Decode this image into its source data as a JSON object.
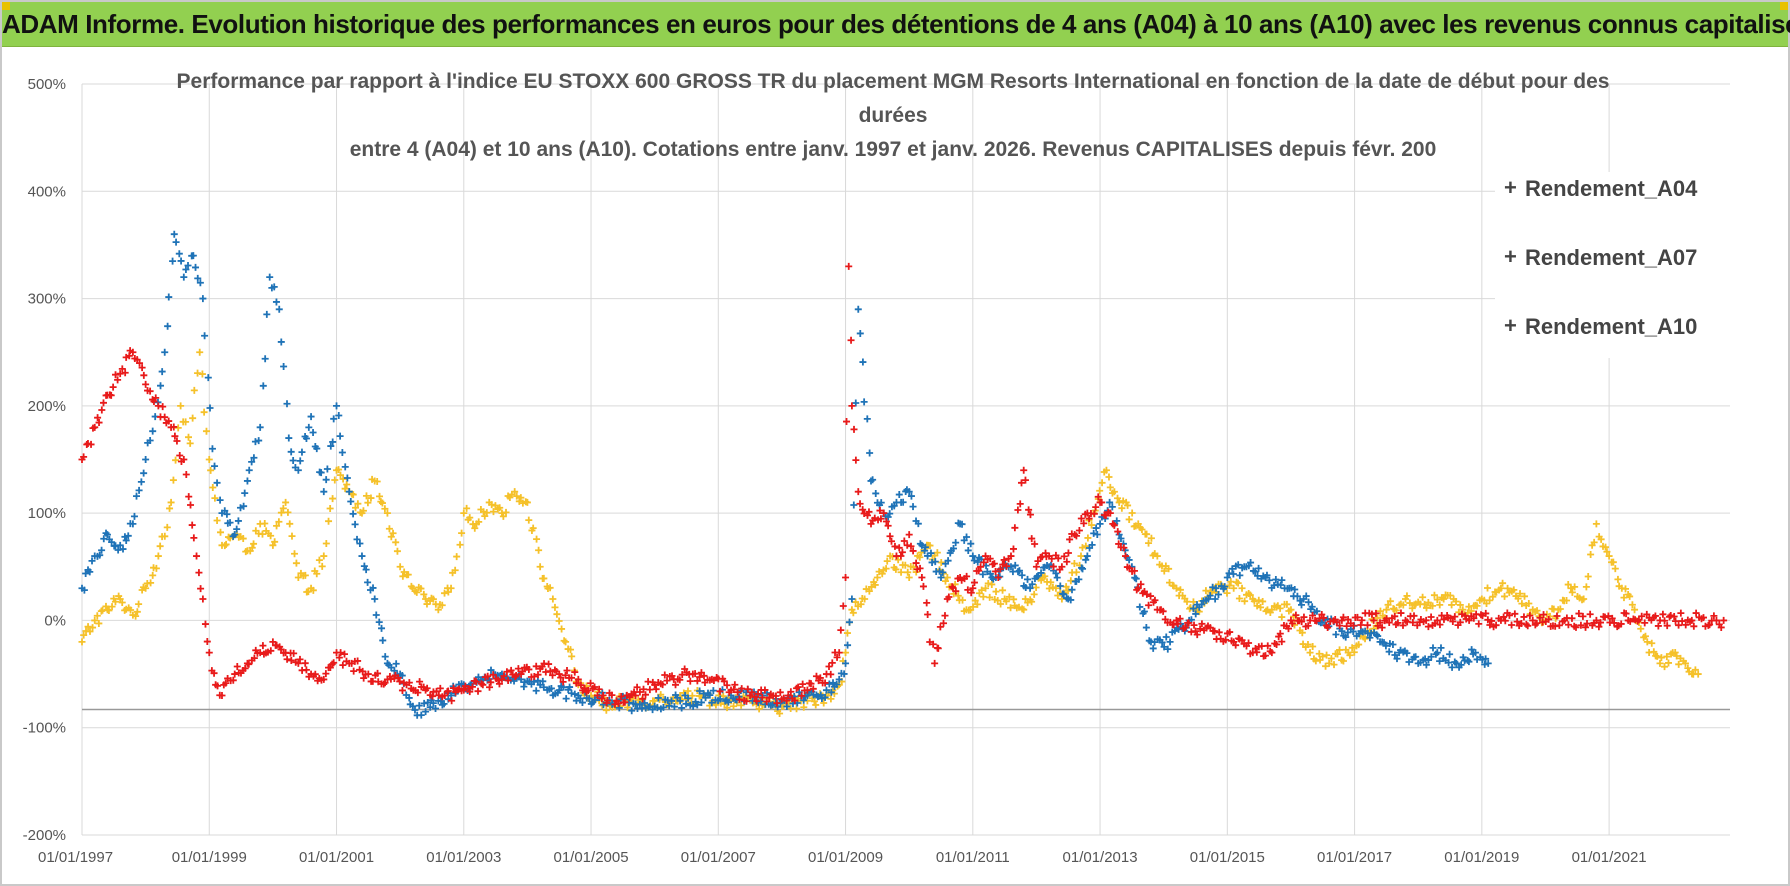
{
  "header": {
    "title": "ADAM Informe. Evolution historique des performances en euros pour des détentions de 4 ans (A04) à 10 ans (A10) avec les revenus connus capitalisés"
  },
  "colors": {
    "banner": "#92d050",
    "a04": "#f5c12a",
    "a07": "#1f73b7",
    "a10": "#e81a1a",
    "grid": "#d9d9d9"
  },
  "chart_data": {
    "type": "scatter",
    "title_lines": [
      "Performance par rapport à l'indice EU STOXX 600 GROSS TR  du placement MGM Resorts International en fonction de la date de début pour des",
      "durées",
      "entre 4 (A04) et 10 ans (A10). Cotations entre janv. 1997 et janv. 2026. Revenus CAPITALISES depuis févr. 200"
    ],
    "xlabel": "",
    "ylabel": "",
    "xlim": [
      1997.0,
      2022.9
    ],
    "ylim": [
      -200,
      500
    ],
    "y_ticks": [
      -200,
      -100,
      0,
      100,
      200,
      300,
      400,
      500
    ],
    "y_tick_labels": [
      "-200%",
      "-100%",
      "0%",
      "100%",
      "200%",
      "300%",
      "400%",
      "500%"
    ],
    "x_ticks": [
      1997,
      1999,
      2001,
      2003,
      2005,
      2007,
      2009,
      2011,
      2013,
      2015,
      2017,
      2019,
      2021
    ],
    "x_tick_labels": [
      "01/01/1997",
      "01/01/1999",
      "01/01/2001",
      "01/01/2003",
      "01/01/2005",
      "01/01/2007",
      "01/01/2009",
      "01/01/2011",
      "01/01/2013",
      "01/01/2015",
      "01/01/2017",
      "01/01/2019",
      "01/01/2021"
    ],
    "reference_line": -83,
    "legend_position": "right",
    "series": [
      {
        "name": "Rendement_A04",
        "color": "#f5c12a",
        "x": [
          1997.0,
          1997.2,
          1997.4,
          1997.6,
          1997.8,
          1998.0,
          1998.2,
          1998.4,
          1998.55,
          1998.7,
          1998.85,
          1999.0,
          1999.2,
          1999.4,
          1999.6,
          1999.8,
          2000.0,
          2000.2,
          2000.4,
          2000.6,
          2000.8,
          2001.0,
          2001.2,
          2001.4,
          2001.6,
          2001.8,
          2002.0,
          2002.2,
          2002.4,
          2002.6,
          2002.8,
          2003.0,
          2003.2,
          2003.4,
          2003.6,
          2003.8,
          2004.0,
          2004.2,
          2004.4,
          2004.6,
          2004.8,
          2005.0,
          2005.3,
          2005.6,
          2006.0,
          2006.4,
          2006.8,
          2007.2,
          2007.6,
          2008.0,
          2008.4,
          2008.7,
          2008.9,
          2009.0,
          2009.1,
          2009.3,
          2009.5,
          2009.7,
          2010.0,
          2010.3,
          2010.6,
          2010.9,
          2011.2,
          2011.5,
          2011.8,
          2012.1,
          2012.4,
          2012.7,
          2012.9,
          2013.1,
          2013.3,
          2013.6,
          2013.9,
          2014.2,
          2014.5,
          2014.8,
          2015.1,
          2015.4,
          2015.7,
          2016.0,
          2016.3,
          2016.6,
          2016.9,
          2017.2,
          2017.5,
          2017.8,
          2018.1,
          2018.4,
          2018.7,
          2019.0,
          2019.3,
          2019.6,
          2019.8,
          2020.0,
          2020.2,
          2020.4,
          2020.6,
          2020.8,
          2021.0,
          2021.2,
          2021.4,
          2021.6,
          2021.8,
          2022.0,
          2022.2,
          2022.4
        ],
        "y": [
          -20,
          0,
          10,
          20,
          5,
          30,
          60,
          110,
          200,
          165,
          250,
          150,
          70,
          80,
          65,
          90,
          70,
          110,
          40,
          30,
          60,
          140,
          120,
          100,
          130,
          100,
          50,
          30,
          20,
          10,
          30,
          100,
          90,
          110,
          100,
          120,
          110,
          50,
          20,
          -20,
          -60,
          -70,
          -80,
          -75,
          -75,
          -70,
          -72,
          -75,
          -78,
          -80,
          -75,
          -70,
          -60,
          -30,
          10,
          20,
          40,
          60,
          40,
          70,
          40,
          10,
          30,
          20,
          10,
          40,
          20,
          60,
          100,
          140,
          110,
          90,
          60,
          30,
          10,
          30,
          30,
          20,
          10,
          10,
          -30,
          -40,
          -30,
          -10,
          10,
          20,
          15,
          20,
          10,
          20,
          30,
          25,
          10,
          0,
          10,
          30,
          20,
          90,
          60,
          30,
          10,
          -20,
          -40,
          -30,
          -40,
          -50
        ]
      },
      {
        "name": "Rendement_A07",
        "color": "#1f73b7",
        "x": [
          1997.0,
          1997.2,
          1997.4,
          1997.6,
          1997.8,
          1998.0,
          1998.15,
          1998.3,
          1998.45,
          1998.6,
          1998.75,
          1998.9,
          1999.05,
          1999.2,
          1999.4,
          1999.6,
          1999.8,
          1999.95,
          2000.1,
          2000.25,
          2000.4,
          2000.6,
          2000.8,
          2001.0,
          2001.2,
          2001.4,
          2001.6,
          2001.8,
          2002.0,
          2002.2,
          2002.4,
          2002.6,
          2002.8,
          2003.0,
          2003.3,
          2003.6,
          2003.9,
          2004.2,
          2004.5,
          2004.8,
          2005.1,
          2005.4,
          2005.7,
          2006.0,
          2006.4,
          2006.8,
          2007.2,
          2007.6,
          2008.0,
          2008.4,
          2008.7,
          2008.9,
          2009.0,
          2009.1,
          2009.2,
          2009.4,
          2009.6,
          2009.8,
          2010.0,
          2010.2,
          2010.5,
          2010.8,
          2011.0,
          2011.3,
          2011.6,
          2011.9,
          2012.2,
          2012.5,
          2012.8,
          2013.0,
          2013.15,
          2013.3,
          2013.5,
          2013.8,
          2014.1,
          2014.4,
          2014.7,
          2015.0,
          2015.3,
          2015.6,
          2015.9,
          2016.2,
          2016.5,
          2016.8,
          2017.1,
          2017.4,
          2017.7,
          2018.0,
          2018.3,
          2018.6,
          2018.9,
          2019.1
        ],
        "y": [
          30,
          60,
          80,
          70,
          90,
          150,
          190,
          250,
          360,
          320,
          340,
          300,
          160,
          100,
          80,
          130,
          180,
          320,
          290,
          170,
          140,
          190,
          120,
          200,
          120,
          60,
          20,
          -40,
          -50,
          -80,
          -85,
          -75,
          -70,
          -60,
          -55,
          -50,
          -55,
          -60,
          -65,
          -70,
          -72,
          -75,
          -78,
          -80,
          -75,
          -72,
          -70,
          -72,
          -75,
          -70,
          -65,
          -55,
          -40,
          20,
          290,
          130,
          100,
          110,
          120,
          70,
          40,
          90,
          60,
          40,
          50,
          30,
          50,
          20,
          60,
          90,
          110,
          80,
          50,
          -20,
          -20,
          0,
          20,
          40,
          50,
          40,
          30,
          20,
          0,
          -10,
          -10,
          -20,
          -30,
          -40,
          -30,
          -40,
          -30,
          -40
        ]
      },
      {
        "name": "Rendement_A10",
        "color": "#e81a1a",
        "x": [
          1997.0,
          1997.2,
          1997.4,
          1997.6,
          1997.8,
          1998.0,
          1998.2,
          1998.4,
          1998.6,
          1998.8,
          1998.9,
          1999.0,
          1999.1,
          1999.2,
          1999.4,
          1999.6,
          1999.8,
          2000.0,
          2000.2,
          2000.4,
          2000.6,
          2000.8,
          2001.0,
          2001.2,
          2001.5,
          2001.8,
          2002.1,
          2002.4,
          2002.7,
          2003.0,
          2003.3,
          2003.6,
          2003.9,
          2004.2,
          2004.5,
          2004.8,
          2005.1,
          2005.4,
          2005.7,
          2006.0,
          2006.3,
          2006.6,
          2006.9,
          2007.2,
          2007.5,
          2007.8,
          2008.1,
          2008.4,
          2008.7,
          2008.9,
          2009.0,
          2009.05,
          2009.1,
          2009.2,
          2009.4,
          2009.6,
          2009.8,
          2010.0,
          2010.2,
          2010.4,
          2010.6,
          2010.8,
          2011.0,
          2011.2,
          2011.4,
          2011.6,
          2011.8,
          2012.0,
          2012.2,
          2012.4,
          2012.6,
          2012.8,
          2013.0,
          2013.2,
          2013.4,
          2013.6,
          2013.9,
          2014.2,
          2014.5,
          2014.8,
          2015.1,
          2015.4,
          2015.7,
          2016.0,
          2016.3,
          2016.8,
          2017.3,
          2017.8,
          2018.3,
          2018.8,
          2019.3,
          2019.8,
          2020.3,
          2020.8,
          2021.3,
          2021.8,
          2022.3,
          2022.8
        ],
        "y": [
          150,
          180,
          210,
          230,
          250,
          220,
          200,
          180,
          150,
          60,
          20,
          -30,
          -60,
          -70,
          -50,
          -40,
          -30,
          -20,
          -30,
          -40,
          -50,
          -55,
          -30,
          -40,
          -50,
          -55,
          -60,
          -65,
          -70,
          -65,
          -60,
          -55,
          -50,
          -45,
          -50,
          -55,
          -70,
          -75,
          -70,
          -60,
          -55,
          -50,
          -55,
          -65,
          -70,
          -72,
          -70,
          -65,
          -50,
          -30,
          40,
          330,
          200,
          120,
          90,
          100,
          60,
          80,
          40,
          -40,
          20,
          40,
          30,
          60,
          40,
          60,
          140,
          50,
          60,
          50,
          80,
          100,
          110,
          90,
          60,
          30,
          10,
          0,
          -10,
          -10,
          -20,
          -30,
          -30,
          0,
          0,
          0,
          0,
          0,
          0,
          0,
          0,
          0,
          0,
          0,
          0,
          0,
          0,
          0
        ]
      }
    ]
  }
}
